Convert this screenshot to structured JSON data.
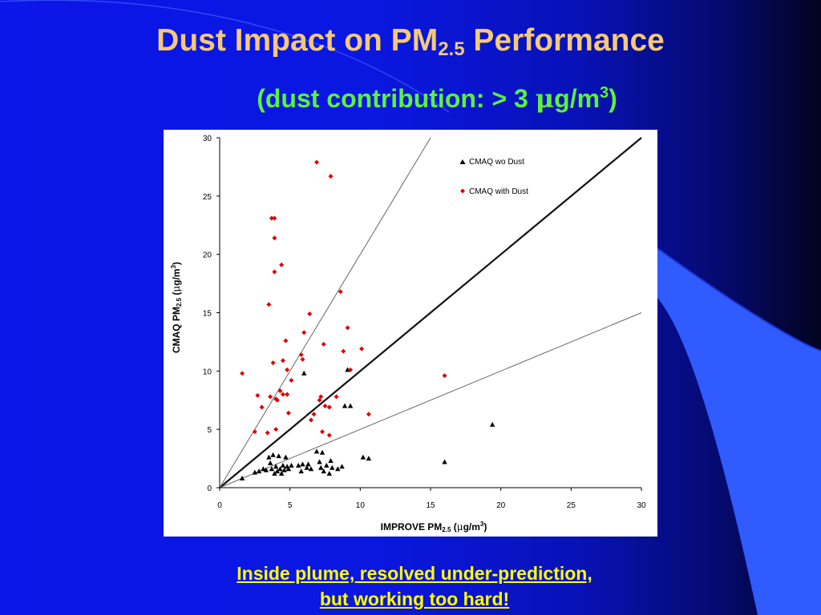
{
  "slide": {
    "title": {
      "main": "Dust Impact on PM",
      "sub": "2.5",
      "tail": " Performance"
    },
    "subtitle": {
      "pre": "(dust contribution: > 3 ",
      "mu": "μ",
      "mid": "g/m",
      "sup": "3",
      "post": ")"
    },
    "caption": {
      "line1": "Inside plume, resolved under-prediction,",
      "line2": "but working too hard!"
    },
    "colors": {
      "title": "#f5c978",
      "subtitle": "#5ef03d",
      "caption": "#ffff00",
      "background": "#0a17e0"
    }
  },
  "chart_data": {
    "type": "scatter",
    "xlabel": {
      "pre": "IMPROVE PM",
      "sub": "2.5",
      "unit_pre": " (",
      "mu": "μ",
      "unit_mid": "g/m",
      "sup": "3",
      "unit_post": ")"
    },
    "ylabel": {
      "pre": "CMAQ PM",
      "sub": "2.5",
      "unit_pre": " (",
      "mu": "μ",
      "unit_mid": "g/m",
      "sup": "3",
      "unit_post": ")"
    },
    "xlim": [
      0,
      30
    ],
    "ylim": [
      0,
      30
    ],
    "x_ticks": [
      0,
      5,
      10,
      15,
      20,
      25,
      30
    ],
    "y_ticks": [
      0,
      5,
      10,
      15,
      20,
      25,
      30
    ],
    "grid": false,
    "legend_position": "top-right",
    "reference_lines": [
      {
        "slope": 1,
        "style": "thick"
      },
      {
        "slope": 2,
        "style": "thin"
      },
      {
        "slope": 0.5,
        "style": "thin"
      }
    ],
    "series": [
      {
        "name": "CMAQ wo Dust",
        "marker": "triangle",
        "color": "#000000",
        "points": [
          [
            1.6,
            0.8
          ],
          [
            2.5,
            1.3
          ],
          [
            2.8,
            1.4
          ],
          [
            3.1,
            1.6
          ],
          [
            3.3,
            1.5
          ],
          [
            3.5,
            2.6
          ],
          [
            3.6,
            2.1
          ],
          [
            3.7,
            1.6
          ],
          [
            3.8,
            2.8
          ],
          [
            3.9,
            1.2
          ],
          [
            4.0,
            1.8
          ],
          [
            4.1,
            1.4
          ],
          [
            4.2,
            2.7
          ],
          [
            4.3,
            1.6
          ],
          [
            4.4,
            1.2
          ],
          [
            4.5,
            1.9
          ],
          [
            4.6,
            1.5
          ],
          [
            4.7,
            2.6
          ],
          [
            4.8,
            1.8
          ],
          [
            4.9,
            1.6
          ],
          [
            5.1,
            1.9
          ],
          [
            5.6,
            1.9
          ],
          [
            5.8,
            1.4
          ],
          [
            5.9,
            2.0
          ],
          [
            6.0,
            9.8
          ],
          [
            6.2,
            1.7
          ],
          [
            6.3,
            2.0
          ],
          [
            6.5,
            1.6
          ],
          [
            6.9,
            3.1
          ],
          [
            7.1,
            2.2
          ],
          [
            7.2,
            1.7
          ],
          [
            7.3,
            3.0
          ],
          [
            7.4,
            1.4
          ],
          [
            7.6,
            1.9
          ],
          [
            7.8,
            1.2
          ],
          [
            7.9,
            2.3
          ],
          [
            8.0,
            1.7
          ],
          [
            8.4,
            1.6
          ],
          [
            8.7,
            1.8
          ],
          [
            8.9,
            7.0
          ],
          [
            9.1,
            10.1
          ],
          [
            9.3,
            7.0
          ],
          [
            10.2,
            2.6
          ],
          [
            10.6,
            2.5
          ],
          [
            16.0,
            2.2
          ],
          [
            19.4,
            5.4
          ]
        ]
      },
      {
        "name": "CMAQ with Dust",
        "marker": "diamond",
        "color": "#e00000",
        "points": [
          [
            1.6,
            9.8
          ],
          [
            2.5,
            4.8
          ],
          [
            2.7,
            7.9
          ],
          [
            3.0,
            6.9
          ],
          [
            3.4,
            4.7
          ],
          [
            3.5,
            15.7
          ],
          [
            3.6,
            7.8
          ],
          [
            3.7,
            23.1
          ],
          [
            3.8,
            10.7
          ],
          [
            3.9,
            18.5
          ],
          [
            3.9,
            21.4
          ],
          [
            3.9,
            23.1
          ],
          [
            4.0,
            7.6
          ],
          [
            4.0,
            5.0
          ],
          [
            4.1,
            7.5
          ],
          [
            4.3,
            8.3
          ],
          [
            4.4,
            19.1
          ],
          [
            4.5,
            8.0
          ],
          [
            4.5,
            10.9
          ],
          [
            4.7,
            12.6
          ],
          [
            4.8,
            10.1
          ],
          [
            4.8,
            8.0
          ],
          [
            4.9,
            6.4
          ],
          [
            5.1,
            9.2
          ],
          [
            5.8,
            11.4
          ],
          [
            5.9,
            11.0
          ],
          [
            6.0,
            13.3
          ],
          [
            6.4,
            14.9
          ],
          [
            6.5,
            5.8
          ],
          [
            6.7,
            6.3
          ],
          [
            6.9,
            27.9
          ],
          [
            7.1,
            7.5
          ],
          [
            7.2,
            7.8
          ],
          [
            7.3,
            4.8
          ],
          [
            7.4,
            12.3
          ],
          [
            7.5,
            7.0
          ],
          [
            7.8,
            4.5
          ],
          [
            7.9,
            26.7
          ],
          [
            7.8,
            6.9
          ],
          [
            8.3,
            7.8
          ],
          [
            8.6,
            16.8
          ],
          [
            8.8,
            11.7
          ],
          [
            9.1,
            13.7
          ],
          [
            9.3,
            10.1
          ],
          [
            10.1,
            11.9
          ],
          [
            10.6,
            6.3
          ],
          [
            16.0,
            9.6
          ]
        ]
      }
    ]
  }
}
